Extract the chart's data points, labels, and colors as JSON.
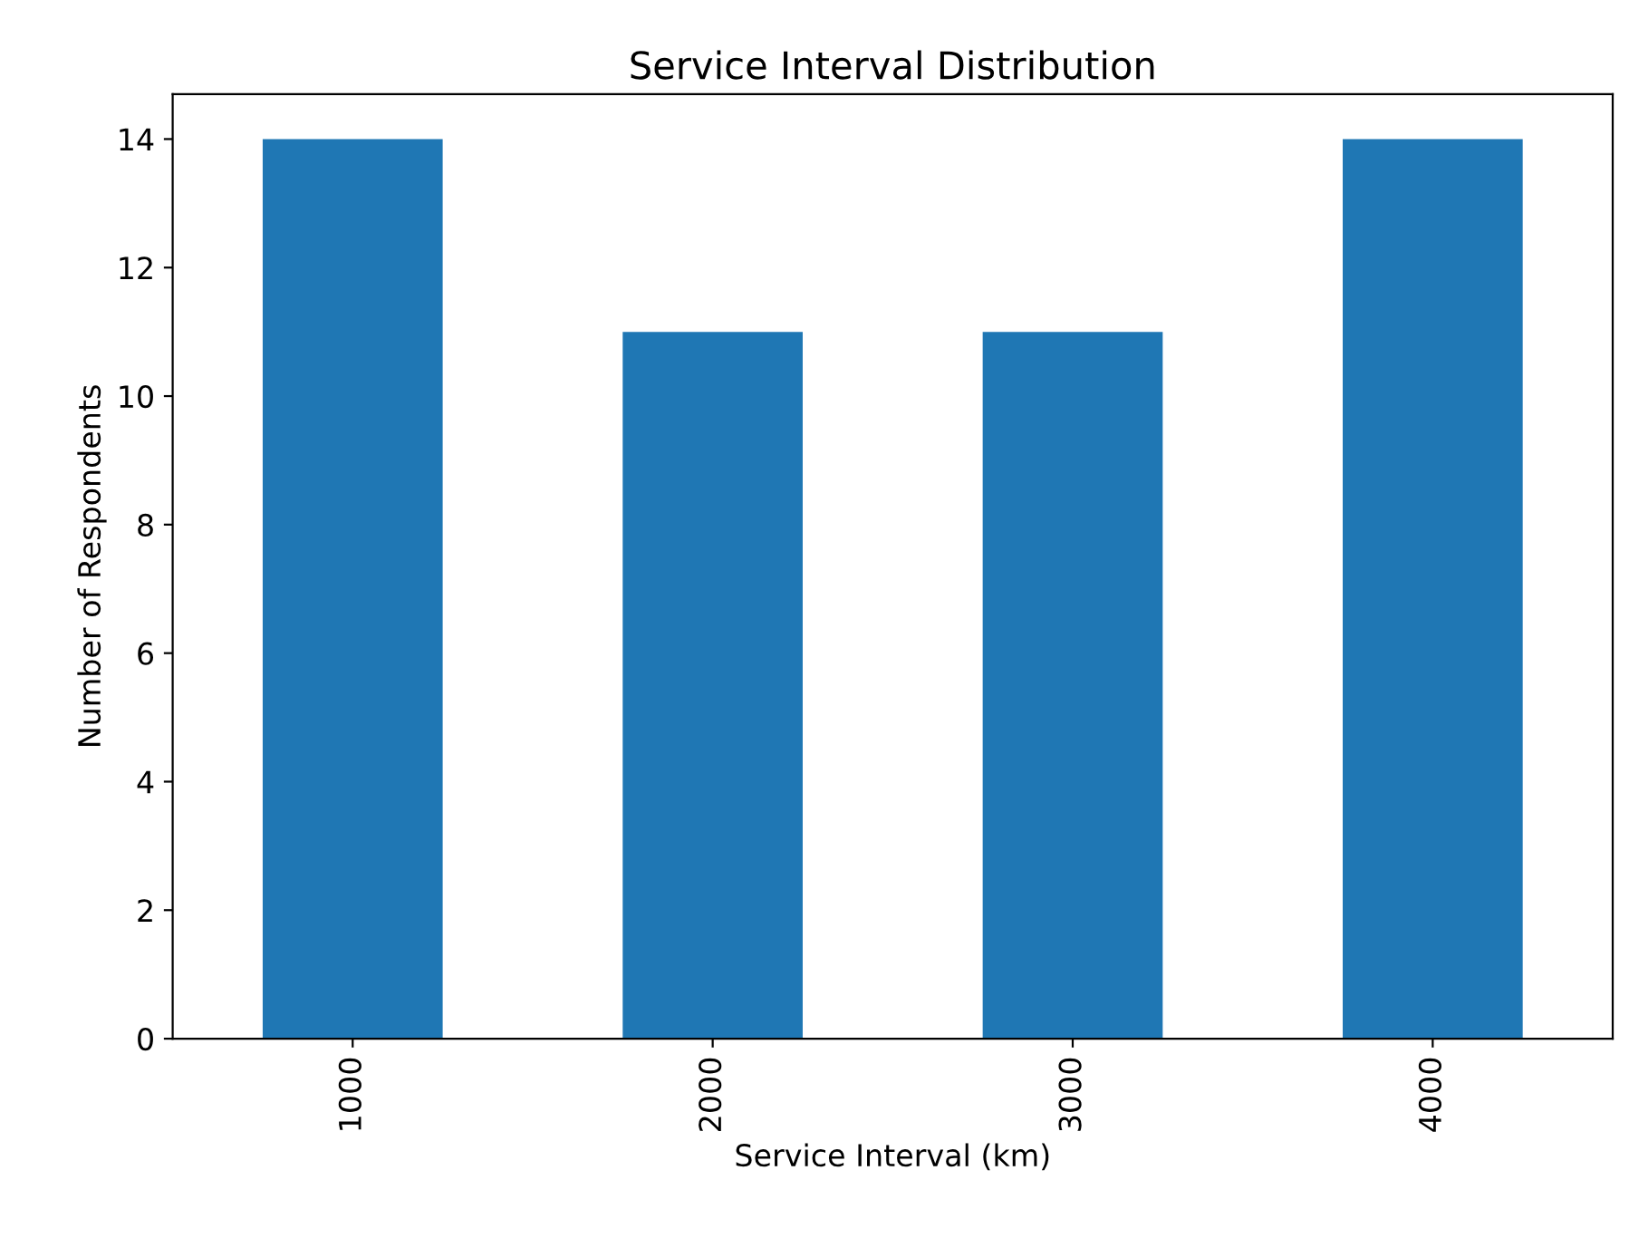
{
  "chart_data": {
    "type": "bar",
    "title": "Service Interval Distribution",
    "xlabel": "Service Interval (km)",
    "ylabel": "Number of Respondents",
    "categories": [
      "1000",
      "2000",
      "3000",
      "4000"
    ],
    "series": [
      {
        "color": "#1f77b4",
        "values": [
          14,
          11,
          11,
          14
        ]
      }
    ],
    "ylim": [
      0,
      14.7
    ],
    "yticks": [
      0,
      2,
      4,
      6,
      8,
      10,
      12,
      14
    ],
    "grid": false,
    "legend": false
  }
}
